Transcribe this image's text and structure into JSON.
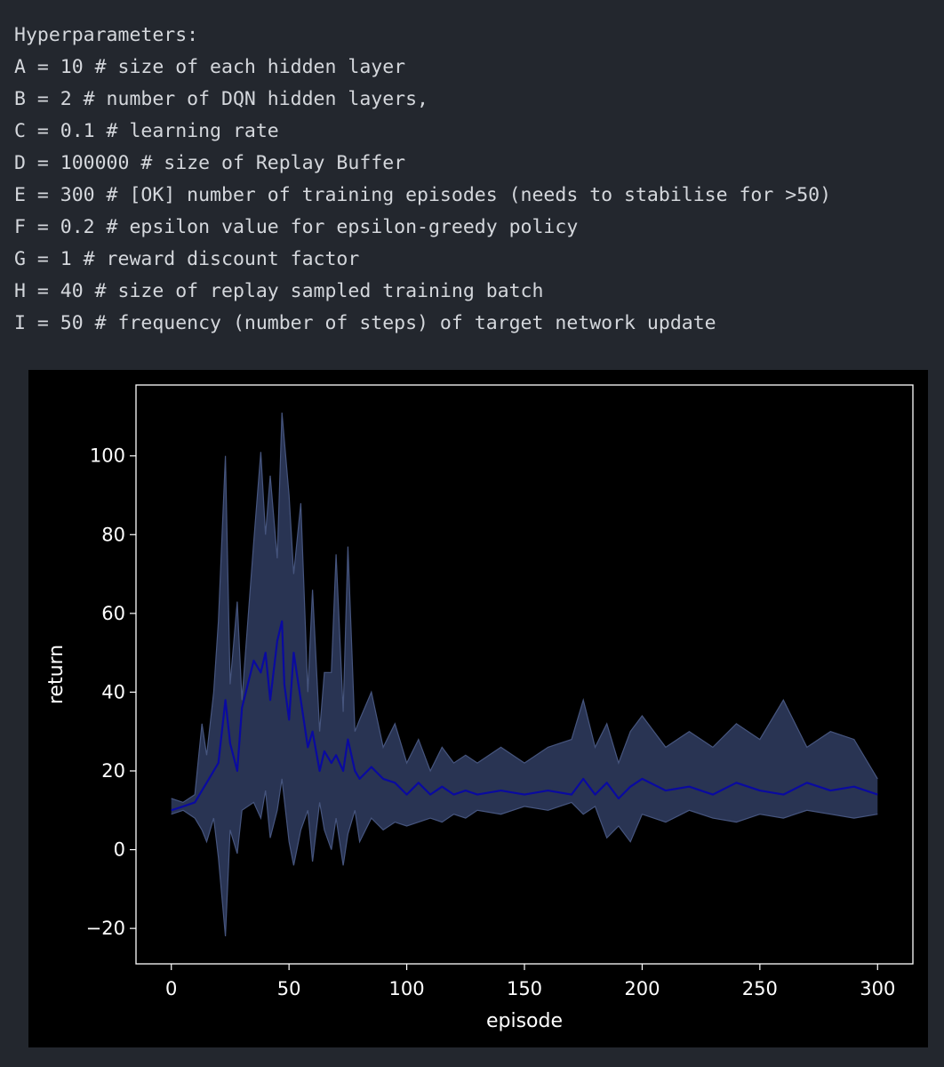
{
  "code": {
    "lines": [
      "Hyperparameters:",
      "A = 10 # size of each hidden layer",
      "B = 2 # number of DQN hidden layers,",
      "C = 0.1 # learning rate",
      "D = 100000 # size of Replay Buffer",
      "E = 300 # [OK] number of training episodes (needs to stabilise for >50)",
      "F = 0.2 # epsilon value for epsilon-greedy policy",
      "G = 1 # reward discount factor",
      "H = 40 # size of replay sampled training batch",
      "I = 50 # frequency (number of steps) of target network update"
    ]
  },
  "chart_data": {
    "type": "line",
    "title": "",
    "xlabel": "episode",
    "ylabel": "return",
    "xlim": [
      -15,
      315
    ],
    "ylim": [
      -29,
      118
    ],
    "xticks": [
      0,
      50,
      100,
      150,
      200,
      250,
      300
    ],
    "xtick_labels": [
      "0",
      "50",
      "100",
      "150",
      "200",
      "250",
      "300"
    ],
    "yticks": [
      -20,
      0,
      20,
      40,
      60,
      80,
      100
    ],
    "ytick_labels": [
      "−20",
      "0",
      "20",
      "40",
      "60",
      "80",
      "100"
    ],
    "grid": false,
    "legend": "none",
    "colors": {
      "mean_line": "#0a0aa0",
      "band_fill": "#2e3a5c",
      "band_edge": "#46557e",
      "axes": "#ffffff",
      "text": "#ffffff",
      "background": "#000000"
    },
    "series": [
      {
        "role": "mean",
        "x": [
          0,
          5,
          10,
          15,
          20,
          23,
          25,
          28,
          30,
          35,
          38,
          40,
          42,
          45,
          47,
          48,
          50,
          52,
          55,
          58,
          60,
          63,
          65,
          68,
          70,
          73,
          75,
          78,
          80,
          85,
          90,
          95,
          100,
          105,
          110,
          115,
          120,
          125,
          130,
          140,
          150,
          160,
          170,
          175,
          180,
          185,
          190,
          195,
          200,
          210,
          220,
          230,
          240,
          250,
          260,
          270,
          280,
          290,
          300
        ],
        "y": [
          10,
          11,
          12,
          17,
          22,
          38,
          27,
          20,
          36,
          48,
          45,
          50,
          38,
          53,
          58,
          42,
          33,
          50,
          38,
          26,
          30,
          20,
          25,
          22,
          24,
          20,
          28,
          20,
          18,
          21,
          18,
          17,
          14,
          17,
          14,
          16,
          14,
          15,
          14,
          15,
          14,
          15,
          14,
          18,
          14,
          17,
          13,
          16,
          18,
          15,
          16,
          14,
          17,
          15,
          14,
          17,
          15,
          16,
          14
        ]
      },
      {
        "role": "upper",
        "x": [
          0,
          5,
          10,
          13,
          15,
          18,
          20,
          23,
          25,
          28,
          30,
          35,
          38,
          40,
          42,
          45,
          47,
          50,
          52,
          55,
          58,
          60,
          63,
          65,
          68,
          70,
          73,
          75,
          78,
          80,
          85,
          90,
          95,
          100,
          105,
          110,
          115,
          120,
          125,
          130,
          140,
          150,
          160,
          170,
          175,
          180,
          185,
          190,
          195,
          200,
          210,
          220,
          230,
          240,
          250,
          260,
          270,
          280,
          290,
          300
        ],
        "y": [
          13,
          12,
          14,
          32,
          24,
          40,
          58,
          100,
          42,
          63,
          38,
          78,
          101,
          80,
          95,
          74,
          111,
          90,
          70,
          88,
          40,
          66,
          30,
          45,
          45,
          75,
          35,
          77,
          30,
          33,
          40,
          26,
          32,
          22,
          28,
          20,
          26,
          22,
          24,
          22,
          26,
          22,
          26,
          28,
          38,
          26,
          32,
          22,
          30,
          34,
          26,
          30,
          26,
          32,
          28,
          38,
          26,
          30,
          28,
          18
        ]
      },
      {
        "role": "lower",
        "x": [
          0,
          5,
          10,
          13,
          15,
          18,
          20,
          23,
          25,
          28,
          30,
          35,
          38,
          40,
          42,
          45,
          47,
          50,
          52,
          55,
          58,
          60,
          63,
          65,
          68,
          70,
          73,
          75,
          78,
          80,
          85,
          90,
          95,
          100,
          105,
          110,
          115,
          120,
          125,
          130,
          140,
          150,
          160,
          170,
          175,
          180,
          185,
          190,
          195,
          200,
          210,
          220,
          230,
          240,
          250,
          260,
          270,
          280,
          290,
          300
        ],
        "y": [
          9,
          10,
          8,
          5,
          2,
          8,
          -2,
          -22,
          5,
          -1,
          10,
          12,
          8,
          15,
          3,
          10,
          18,
          2,
          -4,
          5,
          10,
          -3,
          12,
          5,
          0,
          8,
          -4,
          4,
          10,
          2,
          8,
          5,
          7,
          6,
          7,
          8,
          7,
          9,
          8,
          10,
          9,
          11,
          10,
          12,
          9,
          11,
          3,
          6,
          2,
          9,
          7,
          10,
          8,
          7,
          9,
          8,
          10,
          9,
          8,
          9
        ]
      }
    ]
  }
}
